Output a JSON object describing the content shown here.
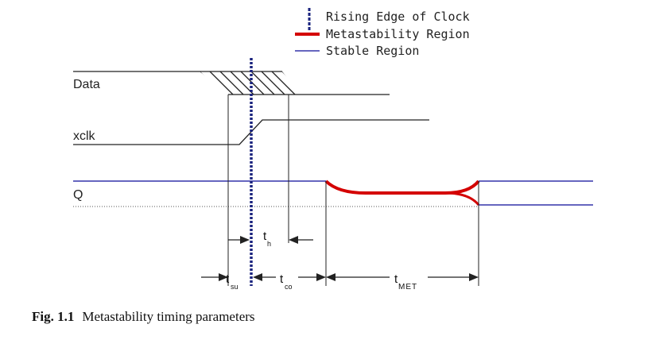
{
  "legend": {
    "items": [
      {
        "label": "Rising Edge of Clock",
        "color": "#1a237e",
        "style": "dotted"
      },
      {
        "label": "Metastability Region",
        "color": "#d40000",
        "style": "thick"
      },
      {
        "label": "Stable Region",
        "color": "#3333aa",
        "style": "thin"
      }
    ]
  },
  "signals": {
    "data": "Data",
    "xclk": "xclk",
    "q": "Q"
  },
  "parameters": {
    "tsu": {
      "main": "t",
      "sub": "su"
    },
    "th": {
      "main": "t",
      "sub": "h"
    },
    "tco": {
      "main": "t",
      "sub": "co"
    },
    "tmet": {
      "main": "t",
      "sub": "MET"
    }
  },
  "caption": {
    "number": "Fig. 1.1",
    "text": "Metastability timing parameters"
  },
  "colors": {
    "clock_edge": "#1a237e",
    "metastable": "#d40000",
    "stable": "#3333aa",
    "ink": "#222222"
  }
}
